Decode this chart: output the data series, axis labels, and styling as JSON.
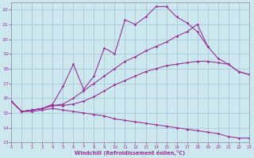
{
  "bg_color": "#cce8ee",
  "line_color": "#993399",
  "grid_color": "#99bbcc",
  "xlim": [
    0,
    23
  ],
  "ylim": [
    13,
    22.5
  ],
  "yticks": [
    13,
    14,
    15,
    16,
    17,
    18,
    19,
    20,
    21,
    22
  ],
  "xticks": [
    0,
    1,
    2,
    3,
    4,
    5,
    6,
    7,
    8,
    9,
    10,
    11,
    12,
    13,
    14,
    15,
    16,
    17,
    18,
    19,
    20,
    21,
    22,
    23
  ],
  "xlabel": "Windchill (Refroidissement éolien,°C)",
  "line_volatile_x": [
    0,
    1,
    2,
    3,
    4,
    5,
    6,
    7,
    8,
    9,
    10,
    11,
    12,
    13,
    14,
    15,
    16,
    17,
    18,
    19
  ],
  "line_volatile_y": [
    15.8,
    15.1,
    15.2,
    15.3,
    15.6,
    16.8,
    18.3,
    16.6,
    17.5,
    19.4,
    19.0,
    21.3,
    21.0,
    21.5,
    22.2,
    22.2,
    21.5,
    21.1,
    20.5,
    19.5
  ],
  "line_upper_x": [
    0,
    1,
    2,
    3,
    4,
    5,
    6,
    7,
    8,
    9,
    10,
    11,
    12,
    13,
    14,
    15,
    16,
    17,
    18,
    19,
    20,
    21,
    22,
    23
  ],
  "line_upper_y": [
    15.8,
    15.1,
    15.2,
    15.3,
    15.5,
    15.6,
    16.0,
    16.5,
    17.0,
    17.5,
    18.0,
    18.5,
    18.8,
    19.2,
    19.5,
    19.8,
    20.2,
    20.5,
    21.0,
    19.5,
    18.7,
    18.3,
    17.8,
    17.6
  ],
  "line_mid_x": [
    0,
    1,
    2,
    3,
    4,
    5,
    6,
    7,
    8,
    9,
    10,
    11,
    12,
    13,
    14,
    15,
    16,
    17,
    18,
    19,
    20,
    21,
    22,
    23
  ],
  "line_mid_y": [
    15.8,
    15.1,
    15.2,
    15.3,
    15.5,
    15.5,
    15.6,
    15.8,
    16.1,
    16.5,
    16.9,
    17.2,
    17.5,
    17.8,
    18.0,
    18.2,
    18.3,
    18.4,
    18.5,
    18.5,
    18.4,
    18.3,
    17.8,
    17.6
  ],
  "line_low_x": [
    0,
    1,
    2,
    3,
    4,
    5,
    6,
    7,
    8,
    9,
    10,
    11,
    12,
    13,
    14,
    15,
    16,
    17,
    18,
    19,
    20,
    21,
    22,
    23
  ],
  "line_low_y": [
    15.8,
    15.1,
    15.1,
    15.2,
    15.3,
    15.2,
    15.1,
    15.0,
    14.9,
    14.8,
    14.6,
    14.5,
    14.4,
    14.3,
    14.2,
    14.1,
    14.0,
    13.9,
    13.8,
    13.7,
    13.6,
    13.4,
    13.3,
    13.3
  ]
}
